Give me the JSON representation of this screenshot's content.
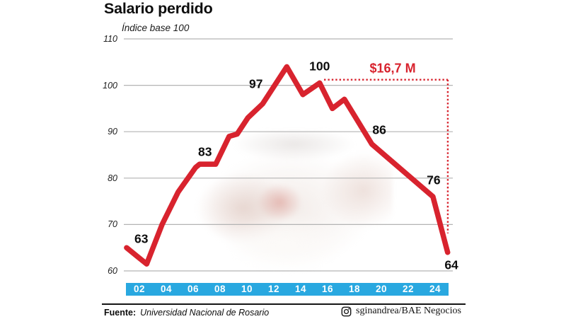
{
  "title": "Salario perdido",
  "subtitle": "Índice base 100",
  "photo_description": "faded photo of hands counting peso banknotes",
  "colors": {
    "line": "#d8232e",
    "accent_text": "#d8232e",
    "axis_band": "#29a8e0",
    "gridline": "#b3b3b3",
    "text": "#0d0d0d"
  },
  "footer": {
    "source_label": "Fuente:",
    "source": "Universidad Nacional de Rosario",
    "credit_icon": "instagram-icon",
    "credit": "sginandrea/BAE Negocios"
  },
  "chart_data": {
    "type": "line",
    "title": "Salario perdido",
    "subtitle": "Índice base 100",
    "xlabel": "",
    "ylabel": "Índice base 100",
    "ylim": [
      60,
      110
    ],
    "yticks": [
      110,
      100,
      90,
      80,
      70,
      60
    ],
    "grid": "horizontal",
    "x_tick_labels": [
      "02",
      "04",
      "06",
      "08",
      "10",
      "12",
      "14",
      "16",
      "18",
      "20",
      "22",
      "24"
    ],
    "labeled_points": [
      {
        "label": "63",
        "year": "02",
        "value": 63,
        "x_year": 2.25,
        "y_value": 66.9
      },
      {
        "label": "83",
        "year": "07",
        "value": 83,
        "x_year": 7.0,
        "y_value": 85.6
      },
      {
        "label": "97",
        "year": "11",
        "value": 97,
        "x_year": 10.8,
        "y_value": 100.3
      },
      {
        "label": "100",
        "year": "15",
        "value": 100,
        "x_year": 15.55,
        "y_value": 104.1
      },
      {
        "label": "86",
        "year": "19",
        "value": 86,
        "x_year": 20.0,
        "y_value": 90.4
      },
      {
        "label": "76",
        "year": "24",
        "value": 76,
        "x_year": 24.05,
        "y_value": 79.5
      },
      {
        "label": "64",
        "year": "25",
        "value": 64,
        "x_year": 25.38,
        "y_value": 61.2
      }
    ],
    "series": [
      {
        "name": "salario-real",
        "points": [
          [
            1.15,
            65
          ],
          [
            2.0,
            63
          ],
          [
            2.65,
            61.5
          ],
          [
            3.8,
            70
          ],
          [
            5.0,
            77
          ],
          [
            6.3,
            82.3
          ],
          [
            6.6,
            83
          ],
          [
            7.8,
            83
          ],
          [
            8.8,
            89
          ],
          [
            9.4,
            89.5
          ],
          [
            10.2,
            93
          ],
          [
            11.3,
            96
          ],
          [
            13.1,
            104
          ],
          [
            14.3,
            98
          ],
          [
            15.55,
            100.5
          ],
          [
            16.5,
            95
          ],
          [
            17.4,
            97
          ],
          [
            19.45,
            87.3
          ],
          [
            24.0,
            76
          ],
          [
            25.1,
            64
          ]
        ]
      }
    ],
    "annotation": {
      "label": "$16,7 M",
      "label_x_year": 21.0,
      "label_y_value": 103.6,
      "dotted_line_y_value": 101.2,
      "dotted_from_year": 15.88,
      "dotted_to_year": 25.11,
      "dotted_drop_to_value": 68.1
    }
  }
}
